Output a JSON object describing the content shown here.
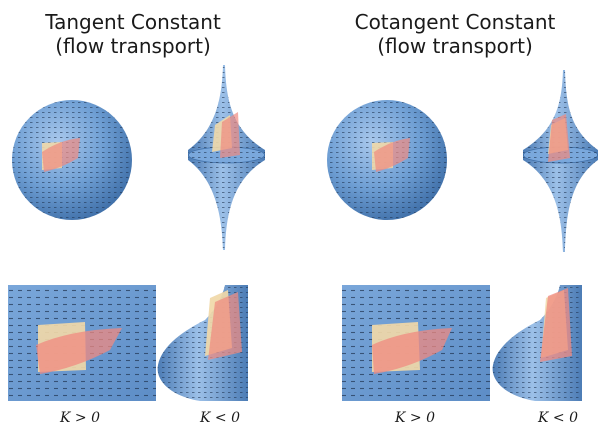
{
  "panels": [
    {
      "title_line1": "Tangent Constant",
      "title_line2": "(flow transport)",
      "label_positive": "K > 0",
      "label_negative": "K < 0"
    },
    {
      "title_line1": "Cotangent Constant",
      "title_line2": "(flow transport)",
      "label_positive": "K > 0",
      "label_negative": "K < 0"
    }
  ],
  "colors": {
    "surface": "#6f9fd4",
    "surface_dark": "#3f6fa8",
    "patch_fill": "#f0d8a8",
    "transported_patch": "#f08a80",
    "hatching": "#1f3350"
  }
}
